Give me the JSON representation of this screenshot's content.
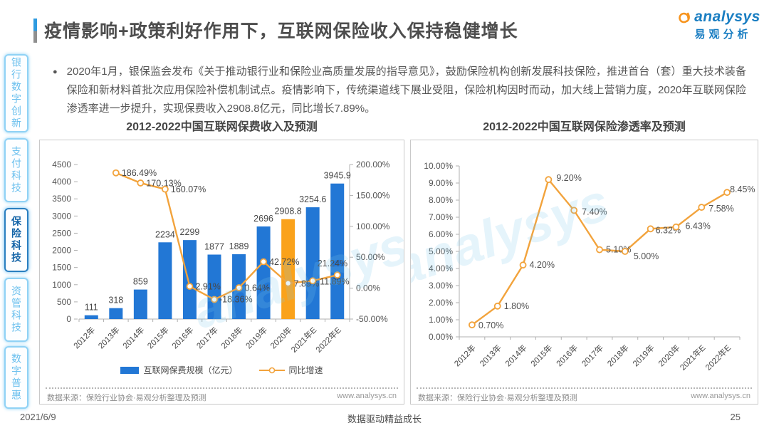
{
  "header": {
    "title": "疫情影响+政策利好作用下，互联网保险收入保持稳健增长",
    "logo_text": "analysys",
    "logo_subtext": "易观分析"
  },
  "summary": {
    "bullet": "●",
    "text": "2020年1月，银保监会发布《关于推动银行业和保险业高质量发展的指导意见》，鼓励保险机构创新发展科技保险，推进首台（套）重大技术装备保险和新材料首批次应用保险补偿机制试点。疫情影响下，传统渠道线下展业受阻，保险机构因时而动，加大线上营销力度，2020年互联网保险渗透率进一步提升，实现保费收入2908.8亿元，同比增长7.89%。"
  },
  "sidebar": {
    "items": [
      {
        "label": "银行数字创新",
        "active": false
      },
      {
        "label": "支付科技",
        "active": false
      },
      {
        "label": "保险科技",
        "active": true
      },
      {
        "label": "资管科技",
        "active": false
      },
      {
        "label": "数字普惠",
        "active": false
      }
    ]
  },
  "watermark": "analysys",
  "colors": {
    "bar_blue": "#2277d5",
    "bar_highlight_orange": "#faa21b",
    "line_orange": "#f2a33c",
    "brand_blue": "#1a7ec2",
    "brand_orange": "#f7941e",
    "axis_gray": "#b0b0b0",
    "label_dark": "#474747"
  },
  "chart_data": [
    {
      "type": "bar",
      "title": "2012-2022中国互联网保费收入及预测",
      "categories": [
        "2012年",
        "2013年",
        "2014年",
        "2015年",
        "2016年",
        "2017年",
        "2018年",
        "2019年",
        "2020年",
        "2021年E",
        "2022年E"
      ],
      "series": [
        {
          "name": "互联网保费规模（亿元）",
          "type": "bar",
          "axis": "left",
          "values": [
            111,
            318,
            859,
            2234,
            2299,
            1877,
            1889,
            2696,
            2908.8,
            3254.6,
            3945.9
          ],
          "value_labels": [
            "111",
            "318",
            "859",
            "2234",
            "2299",
            "1877",
            "1889",
            "2696",
            "2908.8",
            "3254.6",
            "3945.9"
          ],
          "highlight_index": 8
        },
        {
          "name": "同比增速",
          "type": "line",
          "axis": "right",
          "values": [
            null,
            186.49,
            170.13,
            160.07,
            2.91,
            -18.36,
            0.64,
            42.72,
            7.89,
            11.89,
            21.24
          ],
          "value_labels": [
            null,
            "186.49%",
            "170.13%",
            "160.07%",
            "2.91%",
            "-18.36%",
            "0.64%",
            "42.72%",
            "7.89%",
            "11.89%",
            "21.24%"
          ]
        }
      ],
      "left_axis": {
        "min": 0,
        "max": 4500,
        "step": 500,
        "ticks": [
          "0",
          "500",
          "1000",
          "1500",
          "2000",
          "2500",
          "3000",
          "3500",
          "4000",
          "4500"
        ]
      },
      "right_axis": {
        "min": -50,
        "max": 200,
        "step": 50,
        "ticks": [
          "-50.00%",
          "0.00%",
          "50.00%",
          "100.00%",
          "150.00%",
          "200.00%"
        ]
      },
      "grid": false,
      "legend_position": "bottom",
      "source": "数据来源：保险行业协会·易观分析整理及预测",
      "site": "www.analysys.cn"
    },
    {
      "type": "line",
      "title": "2012-2022中国互联网保险渗透率及预测",
      "categories": [
        "2012年",
        "2013年",
        "2014年",
        "2015年",
        "2016年",
        "2017年",
        "2018年",
        "2019年",
        "2020年",
        "2021年E",
        "2022年E"
      ],
      "series": [
        {
          "name": "互联网保险渗透率",
          "type": "line",
          "axis": "left",
          "values": [
            0.7,
            1.8,
            4.2,
            9.2,
            7.4,
            5.1,
            5.0,
            6.32,
            6.43,
            7.58,
            8.45
          ],
          "value_labels": [
            "0.70%",
            "1.80%",
            "4.20%",
            "9.20%",
            "7.40%",
            "5.10%",
            "5.00%",
            "6.32%",
            "6.43%",
            "7.58%",
            "8.45%"
          ]
        }
      ],
      "left_axis": {
        "min": 0,
        "max": 10,
        "step": 1,
        "ticks": [
          "0.00%",
          "1.00%",
          "2.00%",
          "3.00%",
          "4.00%",
          "5.00%",
          "6.00%",
          "7.00%",
          "8.00%",
          "9.00%",
          "10.00%"
        ]
      },
      "grid": false,
      "legend_position": "none",
      "source": "数据来源：保险行业协会·易观分析整理及预测",
      "site": "www.analysys.cn"
    }
  ],
  "footer": {
    "date": "2021/6/9",
    "slogan": "数据驱动精益成长",
    "page_number": "25"
  }
}
